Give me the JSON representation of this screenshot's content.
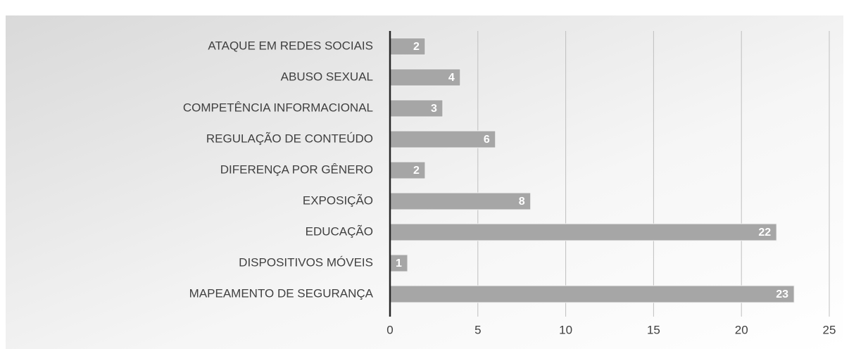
{
  "chart_data": {
    "type": "barh",
    "categories": [
      "ATAQUE EM REDES SOCIAIS",
      "ABUSO SEXUAL",
      "COMPETÊNCIA INFORMACIONAL",
      "REGULAÇÃO DE CONTEÚDO",
      "DIFERENÇA POR GÊNERO",
      "EXPOSIÇÃO",
      "EDUCAÇÃO",
      "DISPOSITIVOS MÓVEIS",
      "MAPEAMENTO DE SEGURANÇA"
    ],
    "values": [
      2,
      4,
      3,
      6,
      2,
      8,
      22,
      1,
      23
    ],
    "color": "#a6a6a6",
    "xlim": [
      0,
      25
    ],
    "xticks": [
      0,
      5,
      10,
      15,
      20,
      25
    ],
    "grid": true
  }
}
